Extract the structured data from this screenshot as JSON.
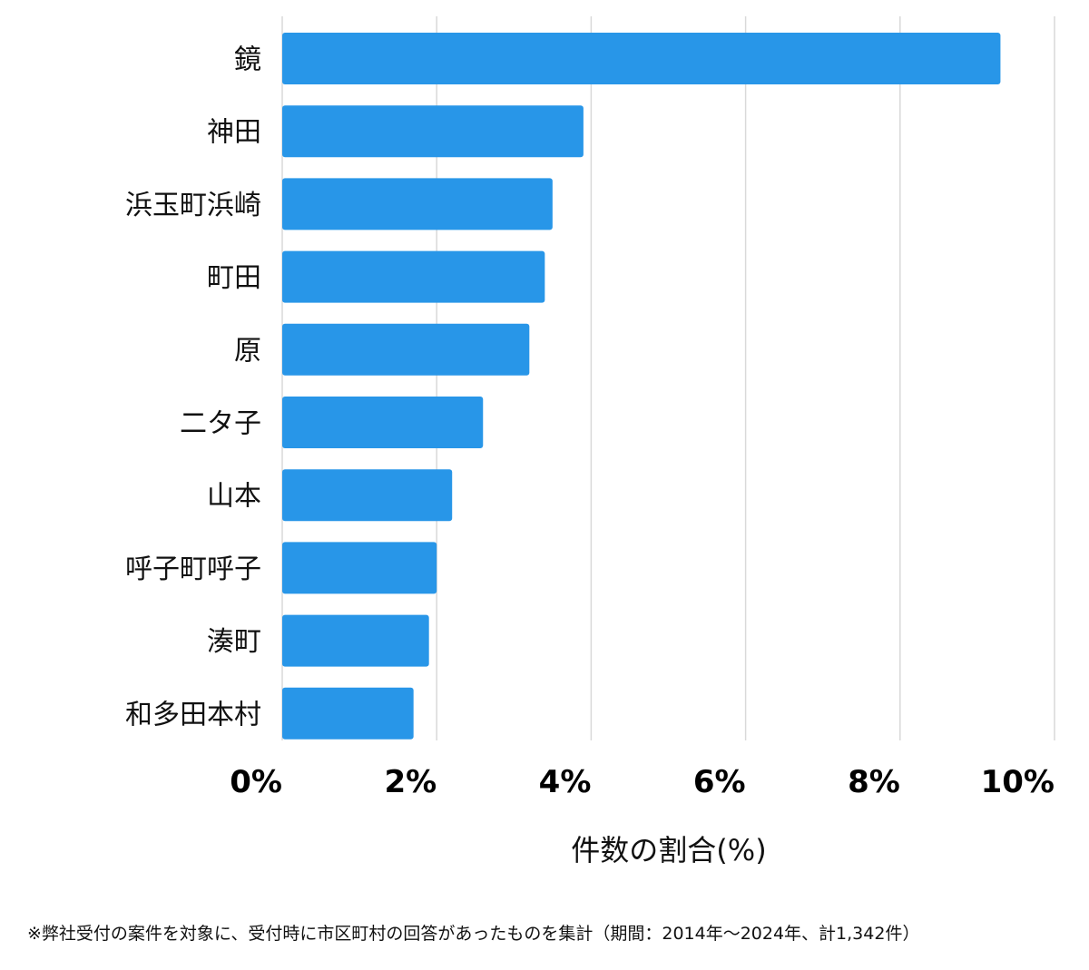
{
  "chart_data": {
    "type": "bar",
    "orientation": "horizontal",
    "categories": [
      "鏡",
      "神田",
      "浜玉町浜崎",
      "町田",
      "原",
      "二タ子",
      "山本",
      "呼子町呼子",
      "湊町",
      "和多田本村"
    ],
    "values": [
      9.3,
      3.9,
      3.5,
      3.4,
      3.2,
      2.6,
      2.2,
      2.0,
      1.9,
      1.7
    ],
    "xlim": [
      0,
      10
    ],
    "xticks": [
      0,
      2,
      4,
      6,
      8,
      10
    ],
    "tick_labels": [
      "0%",
      "2%",
      "4%",
      "6%",
      "8%",
      "10%"
    ],
    "xlabel": "件数の割合(%)",
    "ylabel": "",
    "title": "",
    "grid": true,
    "bar_color": "#2896e8"
  },
  "footnote": "※弊社受付の案件を対象に、受付時に市区町村の回答があったものを集計（期間：2014年～2024年、計1,342件）"
}
